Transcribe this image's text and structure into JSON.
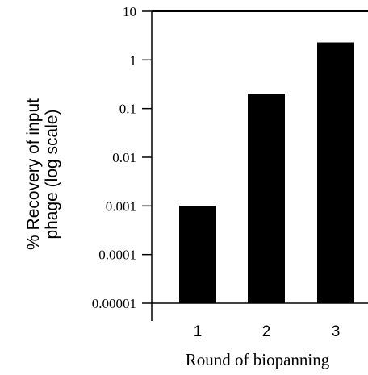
{
  "chart_data": {
    "type": "bar",
    "categories": [
      "1",
      "2",
      "3"
    ],
    "values": [
      0.001,
      0.2,
      2.3
    ],
    "xlabel": "Round of biopanning",
    "ylabel_lines": [
      "% Recovery of input",
      "phage (log scale)"
    ],
    "yscale": "log",
    "ylim": [
      1e-05,
      10
    ],
    "yticks": [
      {
        "value": 10,
        "label": "10"
      },
      {
        "value": 1,
        "label": "1"
      },
      {
        "value": 0.1,
        "label": "0.1"
      },
      {
        "value": 0.01,
        "label": "0.01"
      },
      {
        "value": 0.001,
        "label": "0.001"
      },
      {
        "value": 0.0001,
        "label": "0.0001"
      },
      {
        "value": 1e-05,
        "label": "0.00001"
      }
    ],
    "grid": false,
    "legend": "none",
    "bar_color": "#000000"
  }
}
